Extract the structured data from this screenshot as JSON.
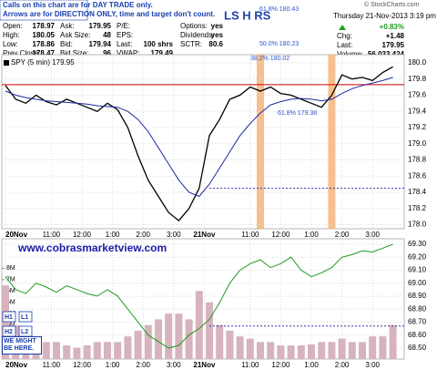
{
  "header": {
    "notes": [
      "Calls on this chart are for DAY TRADE only.",
      "Arrows are for DIRECTION ONLY, time and target don't count."
    ],
    "quote": [
      [
        [
          "Open:",
          "178.97"
        ],
        [
          "Ask:",
          "179.95"
        ],
        [
          "P/E:",
          ""
        ],
        [
          "Options:",
          "yes"
        ]
      ],
      [
        [
          "High:",
          "180.05"
        ],
        [
          "Ask Size:",
          "48"
        ],
        [
          "EPS:",
          ""
        ],
        [
          "Dividends:",
          "yes"
        ]
      ],
      [
        [
          "Low:",
          "178.86"
        ],
        [
          "Bid:",
          "179.94"
        ],
        [
          "Last:",
          "100 shrs"
        ],
        [
          "SCTR:",
          "80.6"
        ]
      ],
      [
        [
          "Prev Close:",
          "178.47"
        ],
        [
          "Bid Size:",
          "96"
        ],
        [
          "VWAP:",
          "179.49"
        ]
      ]
    ],
    "title": "LS H RS",
    "copyright": "© StockCharts.com",
    "date": "Thursday 21-Nov-2013 3:19 pm",
    "change_pct": "+0.83%",
    "stats": [
      [
        "Chg:",
        "+1.48"
      ],
      [
        "Last:",
        "179.95"
      ],
      [
        "Volume:",
        "56,033,424"
      ]
    ]
  },
  "chart_data": [
    {
      "type": "line",
      "legend_text": "SPY (5 min) 179.95",
      "fib_labels": [
        "61.8% 180.43",
        "50.0% 180.23",
        "38.2% 180.02",
        "61.8% 179.38"
      ],
      "x": [
        0,
        4,
        8,
        12,
        16,
        20,
        24,
        28,
        32,
        36,
        40,
        44,
        48,
        52,
        56,
        60,
        64,
        68,
        72,
        76,
        80,
        84,
        88,
        92,
        96,
        100,
        104,
        108,
        112,
        116,
        120,
        124,
        128,
        132,
        136,
        140,
        144,
        148,
        152
      ],
      "xlim": [
        0,
        155
      ],
      "xticks": [
        {
          "value": 0,
          "label": "20Nov"
        },
        {
          "value": 18,
          "label": "11:00"
        },
        {
          "value": 30,
          "label": "12:00"
        },
        {
          "value": 42,
          "label": "1:00"
        },
        {
          "value": 54,
          "label": "2:00"
        },
        {
          "value": 66,
          "label": "3:00"
        },
        {
          "value": 78,
          "label": "21Nov"
        },
        {
          "value": 96,
          "label": "11:00"
        },
        {
          "value": 108,
          "label": "12:00"
        },
        {
          "value": 120,
          "label": "1:00"
        },
        {
          "value": 132,
          "label": "2:00"
        },
        {
          "value": 144,
          "label": "3:00"
        }
      ],
      "series": [
        {
          "color": "#000000",
          "values": [
            179.72,
            179.55,
            179.5,
            179.6,
            179.52,
            179.48,
            179.55,
            179.5,
            179.45,
            179.4,
            179.5,
            179.42,
            179.2,
            178.85,
            178.55,
            178.35,
            178.15,
            178.05,
            178.2,
            178.45,
            179.1,
            179.3,
            179.55,
            179.6,
            179.7,
            179.65,
            179.7,
            179.62,
            179.6,
            179.55,
            179.5,
            179.45,
            179.6,
            179.85,
            179.8,
            179.82,
            179.78,
            179.88,
            179.95
          ]
        },
        {
          "color": "#1c2aa0",
          "values": [
            179.65,
            179.6,
            179.57,
            179.55,
            179.53,
            179.52,
            179.51,
            179.5,
            179.49,
            179.47,
            179.46,
            179.45,
            179.4,
            179.3,
            179.15,
            178.95,
            178.75,
            178.55,
            178.4,
            178.35,
            178.5,
            178.7,
            178.9,
            179.1,
            179.25,
            179.38,
            179.48,
            179.52,
            179.55,
            179.56,
            179.55,
            179.53,
            179.55,
            179.62,
            179.68,
            179.72,
            179.75,
            179.78,
            179.82
          ]
        }
      ],
      "ylim": [
        177.95,
        180.1
      ],
      "yticks": [
        {
          "value": 178,
          "label": "178.0"
        },
        {
          "value": 178.2,
          "label": "178.2"
        },
        {
          "value": 178.4,
          "label": "178.4"
        },
        {
          "value": 178.6,
          "label": "178.6"
        },
        {
          "value": 178.8,
          "label": "178.8"
        },
        {
          "value": 179,
          "label": "179.0"
        },
        {
          "value": 179.2,
          "label": "179.2"
        },
        {
          "value": 179.4,
          "label": "179.4"
        },
        {
          "value": 179.6,
          "label": "179.6"
        },
        {
          "value": 179.8,
          "label": "179.8"
        },
        {
          "value": 180,
          "label": "180.0"
        }
      ],
      "grid": true,
      "hlines": [
        {
          "value": 179.73,
          "color": "#cc0000"
        },
        {
          "value": 178.45,
          "color": "#3333aa",
          "dashed": true,
          "from": 80
        }
      ],
      "highlights": [
        100,
        128
      ],
      "highlight_color": "#f6b47a"
    },
    {
      "type": "bar_line",
      "website": "www.cobrasmarketview.com",
      "labels": [
        "H1",
        "L1",
        "H2",
        "L2",
        "WE MIGHT BE HERE."
      ],
      "x": [
        0,
        4,
        8,
        12,
        16,
        20,
        24,
        28,
        32,
        36,
        40,
        44,
        48,
        52,
        56,
        60,
        64,
        68,
        72,
        76,
        80,
        84,
        88,
        92,
        96,
        100,
        104,
        108,
        112,
        116,
        120,
        124,
        128,
        132,
        136,
        140,
        144,
        148,
        152
      ],
      "xlim": [
        0,
        155
      ],
      "xticks": [
        {
          "value": 0,
          "label": "20Nov"
        },
        {
          "value": 18,
          "label": "11:00"
        },
        {
          "value": 30,
          "label": "12:00"
        },
        {
          "value": 42,
          "label": "1:00"
        },
        {
          "value": 54,
          "label": "2:00"
        },
        {
          "value": 66,
          "label": "3:00"
        },
        {
          "value": 78,
          "label": "21Nov"
        },
        {
          "value": 96,
          "label": "11:00"
        },
        {
          "value": 108,
          "label": "12:00"
        },
        {
          "value": 120,
          "label": "1:00"
        },
        {
          "value": 132,
          "label": "2:00"
        },
        {
          "value": 144,
          "label": "3:00"
        }
      ],
      "series": [
        {
          "color": "#d6b3bd",
          "axis": "y",
          "values": [
            6500000,
            3000000,
            2500000,
            2000000,
            1500000,
            1500000,
            1200000,
            1000000,
            1200000,
            1500000,
            1500000,
            1500000,
            2000000,
            2500000,
            3000000,
            3500000,
            4000000,
            4000000,
            3500000,
            6000000,
            5000000,
            3000000,
            2500000,
            2000000,
            1800000,
            1500000,
            1500000,
            1200000,
            1200000,
            1200000,
            1300000,
            1500000,
            1500000,
            1800000,
            1500000,
            1500000,
            2000000,
            2000000,
            3000000
          ]
        },
        {
          "color": "#1f9a1f",
          "axis": "y2",
          "values": [
            69.05,
            68.95,
            68.92,
            69,
            68.97,
            68.93,
            68.98,
            68.95,
            68.92,
            68.9,
            68.95,
            68.9,
            68.8,
            68.7,
            68.6,
            68.55,
            68.5,
            68.52,
            68.6,
            68.65,
            68.72,
            68.85,
            69,
            69.1,
            69.15,
            69.18,
            69.12,
            69.15,
            69.2,
            69.1,
            69.05,
            69.08,
            69.12,
            69.2,
            69.22,
            69.25,
            69.24,
            69.27,
            69.3
          ]
        }
      ],
      "ylim": [
        0,
        10600000
      ],
      "yticks": [
        {
          "value": 1000000,
          "label": "1M"
        },
        {
          "value": 2000000,
          "label": "2M"
        },
        {
          "value": 3000000,
          "label": "3M"
        },
        {
          "value": 4000000,
          "label": "4M"
        },
        {
          "value": 5000000,
          "label": "5M"
        },
        {
          "value": 6000000,
          "label": "6M"
        },
        {
          "value": 7000000,
          "label": "7M"
        },
        {
          "value": 8000000,
          "label": "8M"
        }
      ],
      "y2lim": [
        68.415,
        69.342
      ],
      "y2ticks": [
        {
          "value": 68.5,
          "label": "68.50"
        },
        {
          "value": 68.6,
          "label": "68.60"
        },
        {
          "value": 68.7,
          "label": "68.70"
        },
        {
          "value": 68.8,
          "label": "68.80"
        },
        {
          "value": 68.9,
          "label": "68.90"
        },
        {
          "value": 69,
          "label": "69.00"
        },
        {
          "value": 69.1,
          "label": "69.10"
        },
        {
          "value": 69.2,
          "label": "69.20"
        },
        {
          "value": 69.3,
          "label": "69.30"
        }
      ],
      "grid": true,
      "hlines": [
        {
          "value": 68.67,
          "axis": "y2",
          "color": "#3333aa",
          "dashed": true,
          "from": 80
        }
      ]
    }
  ]
}
